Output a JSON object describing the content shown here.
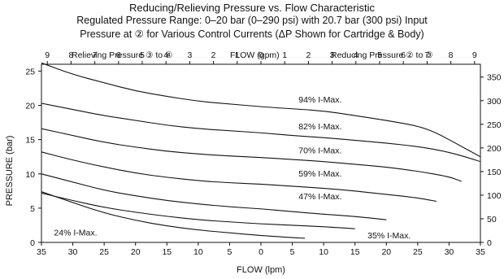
{
  "titles": {
    "line1": "Reducing/Relieving Pressure vs. Flow Characteristic",
    "line2": "Regulated Pressure Range: 0–20 bar (0–290 psi) with 20.7 bar (300 psi) Input",
    "line3": "Pressure at ② for Various Control Currents (ΔP Shown for Cartridge & Body)"
  },
  "top_axis": {
    "left_label": "Relieving Pressure ③ to ④",
    "center_label": "FLOW (gpm)",
    "right_label": "Reducing Pressure ② to ③"
  },
  "chart_data": {
    "type": "line",
    "xlabel": "FLOW (lpm)",
    "ylabel": "PRESSURE (bar)",
    "xlim": [
      -35,
      35
    ],
    "ylim": [
      0,
      26
    ],
    "x_tick_labels": [
      "35",
      "30",
      "25",
      "20",
      "15",
      "10",
      "5",
      "0",
      "5",
      "10",
      "15",
      "20",
      "25",
      "30",
      "35"
    ],
    "y_ticks": [
      0,
      5,
      10,
      15,
      20,
      25
    ],
    "top_axis_gpm_labels": [
      "9",
      "8",
      "7",
      "6",
      "5",
      "4",
      "3",
      "2",
      "1",
      "0",
      "1",
      "2",
      "3",
      "4",
      "5",
      "6",
      "7",
      "8",
      "9"
    ],
    "right_axis_psi_ticks": [
      0,
      50,
      100,
      150,
      200,
      250,
      300,
      350
    ],
    "grid": false,
    "series": [
      {
        "name": "94% I-Max.",
        "label_at": [
          6,
          20.4
        ],
        "points": [
          [
            -35,
            26.2
          ],
          [
            -30,
            24.5
          ],
          [
            -25,
            23.3
          ],
          [
            -20,
            22.1
          ],
          [
            -15,
            21.3
          ],
          [
            -10,
            20.6
          ],
          [
            -5,
            20.2
          ],
          [
            0,
            19.8
          ],
          [
            5,
            19.5
          ],
          [
            10,
            19.2
          ],
          [
            15,
            18.5
          ],
          [
            20,
            17.8
          ],
          [
            25,
            17.0
          ],
          [
            28,
            16.0
          ],
          [
            32,
            14.0
          ],
          [
            35,
            12.5
          ]
        ]
      },
      {
        "name": "82% I-Max.",
        "label_at": [
          6,
          16.5
        ],
        "points": [
          [
            -35,
            20.3
          ],
          [
            -30,
            19.4
          ],
          [
            -25,
            18.5
          ],
          [
            -20,
            17.8
          ],
          [
            -15,
            17.1
          ],
          [
            -10,
            16.6
          ],
          [
            -5,
            16.3
          ],
          [
            0,
            16.0
          ],
          [
            5,
            15.6
          ],
          [
            10,
            15.3
          ],
          [
            15,
            14.9
          ],
          [
            20,
            14.5
          ],
          [
            25,
            14.0
          ],
          [
            30,
            13.2
          ],
          [
            35,
            11.8
          ]
        ]
      },
      {
        "name": "70% I-Max.",
        "label_at": [
          6,
          13.0
        ],
        "points": [
          [
            -35,
            16.6
          ],
          [
            -30,
            15.6
          ],
          [
            -25,
            14.6
          ],
          [
            -20,
            13.9
          ],
          [
            -15,
            13.3
          ],
          [
            -10,
            12.9
          ],
          [
            -5,
            12.6
          ],
          [
            0,
            12.4
          ],
          [
            5,
            12.1
          ],
          [
            10,
            11.8
          ],
          [
            15,
            11.4
          ],
          [
            20,
            11.0
          ],
          [
            25,
            10.4
          ],
          [
            30,
            9.6
          ],
          [
            32,
            8.9
          ]
        ]
      },
      {
        "name": "59% I-Max.",
        "label_at": [
          6,
          9.6
        ],
        "points": [
          [
            -35,
            13.2
          ],
          [
            -30,
            12.0
          ],
          [
            -25,
            11.0
          ],
          [
            -20,
            10.1
          ],
          [
            -15,
            9.5
          ],
          [
            -10,
            9.0
          ],
          [
            -5,
            8.7
          ],
          [
            0,
            8.5
          ],
          [
            5,
            8.2
          ],
          [
            10,
            7.9
          ],
          [
            15,
            7.5
          ],
          [
            20,
            7.0
          ],
          [
            25,
            6.5
          ],
          [
            28,
            6.0
          ]
        ]
      },
      {
        "name": "47% I-Max.",
        "label_at": [
          6,
          6.3
        ],
        "points": [
          [
            -35,
            10.0
          ],
          [
            -30,
            8.8
          ],
          [
            -25,
            7.6
          ],
          [
            -20,
            6.8
          ],
          [
            -15,
            6.1
          ],
          [
            -10,
            5.6
          ],
          [
            -5,
            5.2
          ],
          [
            0,
            4.9
          ],
          [
            5,
            4.5
          ],
          [
            10,
            4.1
          ],
          [
            15,
            3.8
          ],
          [
            20,
            3.3
          ]
        ]
      },
      {
        "name": "24% I-Max.",
        "label_at": [
          -33,
          1.0
        ],
        "points": [
          [
            -35,
            7.4
          ],
          [
            -30,
            5.8
          ],
          [
            -25,
            4.3
          ],
          [
            -20,
            3.2
          ],
          [
            -15,
            2.4
          ],
          [
            -10,
            1.8
          ],
          [
            -5,
            1.4
          ],
          [
            0,
            1.0
          ],
          [
            5,
            0.7
          ],
          [
            7,
            0.6
          ]
        ]
      },
      {
        "name": "35% I-Max.",
        "label_at": [
          17,
          0.6
        ],
        "points": [
          [
            -35,
            7.2
          ],
          [
            -30,
            6.1
          ],
          [
            -25,
            5.1
          ],
          [
            -20,
            4.4
          ],
          [
            -15,
            3.8
          ],
          [
            -10,
            3.3
          ],
          [
            -5,
            3.0
          ],
          [
            0,
            2.7
          ],
          [
            5,
            2.5
          ],
          [
            10,
            2.3
          ],
          [
            15,
            2.0
          ]
        ]
      }
    ]
  }
}
